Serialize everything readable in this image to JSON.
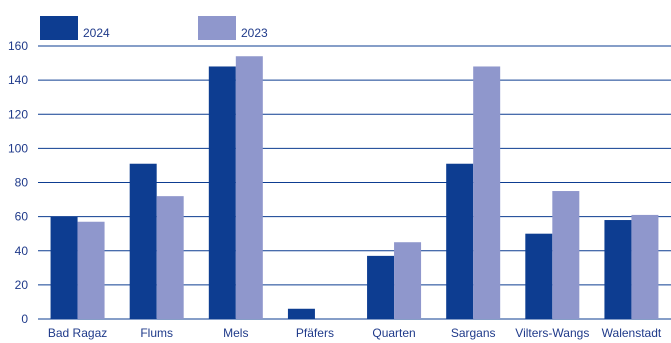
{
  "chart_data": {
    "type": "bar",
    "categories": [
      "Bad Ragaz",
      "Flums",
      "Mels",
      "Pfäfers",
      "Quarten",
      "Sargans",
      "Vilters-Wangs",
      "Walenstadt"
    ],
    "series": [
      {
        "name": "2024",
        "color": "#0d3d91",
        "values": [
          60,
          91,
          148,
          6,
          37,
          91,
          50,
          58
        ]
      },
      {
        "name": "2023",
        "color": "#8f97cc",
        "values": [
          57,
          72,
          154,
          0,
          45,
          148,
          75,
          61
        ]
      }
    ],
    "ylim": [
      0,
      160
    ],
    "yticks": [
      0,
      20,
      40,
      60,
      80,
      100,
      120,
      140,
      160
    ],
    "xlabel": "",
    "ylabel": "",
    "title": "",
    "grid": true,
    "legend_position": "top-left"
  }
}
